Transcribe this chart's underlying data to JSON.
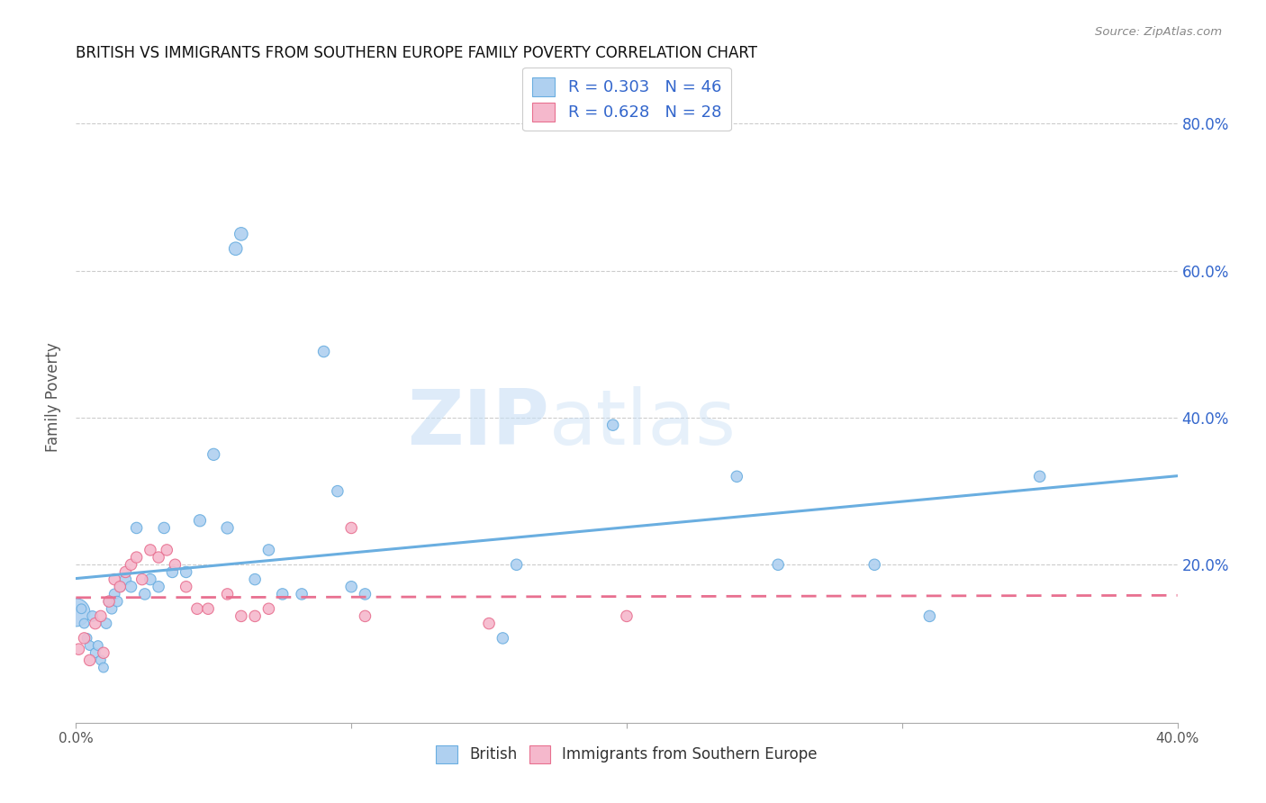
{
  "title": "BRITISH VS IMMIGRANTS FROM SOUTHERN EUROPE FAMILY POVERTY CORRELATION CHART",
  "source": "Source: ZipAtlas.com",
  "ylabel": "Family Poverty",
  "yaxis_labels": [
    "80.0%",
    "60.0%",
    "40.0%",
    "20.0%"
  ],
  "yaxis_values": [
    0.8,
    0.6,
    0.4,
    0.2
  ],
  "xmin": 0.0,
  "xmax": 0.4,
  "ymin": -0.015,
  "ymax": 0.87,
  "legend_entry1": "R = 0.303   N = 46",
  "legend_entry2": "R = 0.628   N = 28",
  "color_british": "#afd0f0",
  "color_british_line": "#6aaee0",
  "color_immigrant": "#f5b8cc",
  "color_immigrant_line": "#e87090",
  "color_text_blue": "#3366cc",
  "background_color": "#ffffff",
  "watermark_zip": "ZIP",
  "watermark_atlas": "atlas",
  "british_x": [
    0.0,
    0.002,
    0.003,
    0.004,
    0.005,
    0.006,
    0.007,
    0.008,
    0.009,
    0.01,
    0.011,
    0.012,
    0.013,
    0.014,
    0.015,
    0.016,
    0.018,
    0.02,
    0.022,
    0.025,
    0.027,
    0.03,
    0.032,
    0.035,
    0.04,
    0.045,
    0.05,
    0.055,
    0.058,
    0.06,
    0.065,
    0.07,
    0.075,
    0.082,
    0.09,
    0.095,
    0.1,
    0.105,
    0.155,
    0.16,
    0.195,
    0.24,
    0.255,
    0.29,
    0.31,
    0.35
  ],
  "british_y": [
    0.135,
    0.14,
    0.12,
    0.1,
    0.09,
    0.13,
    0.08,
    0.09,
    0.07,
    0.06,
    0.12,
    0.15,
    0.14,
    0.16,
    0.15,
    0.17,
    0.18,
    0.17,
    0.25,
    0.16,
    0.18,
    0.17,
    0.25,
    0.19,
    0.19,
    0.26,
    0.35,
    0.25,
    0.63,
    0.65,
    0.18,
    0.22,
    0.16,
    0.16,
    0.49,
    0.3,
    0.17,
    0.16,
    0.1,
    0.2,
    0.39,
    0.32,
    0.2,
    0.2,
    0.13,
    0.32
  ],
  "british_size": [
    500,
    60,
    60,
    60,
    60,
    70,
    60,
    60,
    60,
    60,
    70,
    70,
    70,
    70,
    70,
    70,
    80,
    80,
    80,
    80,
    80,
    80,
    80,
    80,
    80,
    90,
    90,
    90,
    110,
    110,
    80,
    80,
    80,
    80,
    80,
    80,
    80,
    80,
    80,
    80,
    80,
    80,
    80,
    80,
    80,
    80
  ],
  "immigrant_x": [
    0.001,
    0.003,
    0.005,
    0.007,
    0.009,
    0.01,
    0.012,
    0.014,
    0.016,
    0.018,
    0.02,
    0.022,
    0.024,
    0.027,
    0.03,
    0.033,
    0.036,
    0.04,
    0.044,
    0.048,
    0.055,
    0.06,
    0.065,
    0.07,
    0.1,
    0.105,
    0.15,
    0.2
  ],
  "immigrant_y": [
    0.085,
    0.1,
    0.07,
    0.12,
    0.13,
    0.08,
    0.15,
    0.18,
    0.17,
    0.19,
    0.2,
    0.21,
    0.18,
    0.22,
    0.21,
    0.22,
    0.2,
    0.17,
    0.14,
    0.14,
    0.16,
    0.13,
    0.13,
    0.14,
    0.25,
    0.13,
    0.12,
    0.13
  ],
  "immigrant_size": [
    80,
    80,
    80,
    80,
    80,
    80,
    80,
    80,
    80,
    80,
    80,
    80,
    80,
    80,
    80,
    80,
    80,
    80,
    80,
    80,
    80,
    80,
    80,
    80,
    80,
    80,
    80,
    80
  ]
}
